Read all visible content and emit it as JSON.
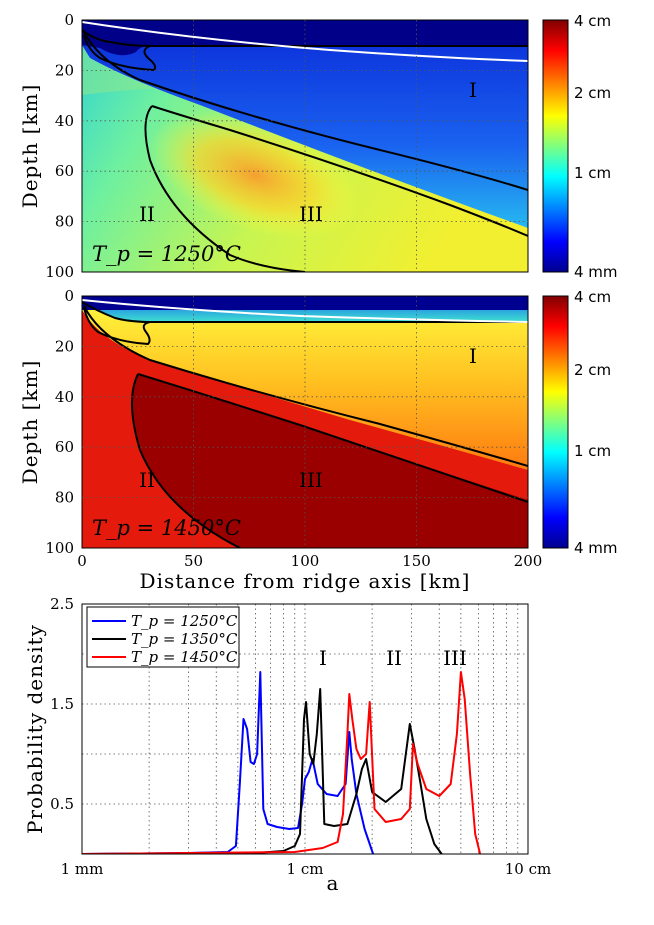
{
  "chart_data": [
    {
      "type": "heatmap",
      "panel": "top",
      "colormap": "jet",
      "annotation": "T_p = 1250°C",
      "ylabel": "Depth [km]",
      "xlim": [
        0,
        200
      ],
      "ylim": [
        100,
        0
      ],
      "x_ticks": [
        "0",
        "50",
        "100",
        "150",
        "200"
      ],
      "y_ticks": [
        "0",
        "20",
        "40",
        "60",
        "80",
        "100"
      ],
      "colorbar_ticks": [
        "4 cm",
        "2 cm",
        "1 cm",
        "4 mm"
      ],
      "region_labels": [
        "I",
        "II",
        "III"
      ]
    },
    {
      "type": "heatmap",
      "panel": "middle",
      "colormap": "jet",
      "annotation": "T_p = 1450°C",
      "xlabel": "Distance from ridge axis [km]",
      "ylabel": "Depth [km]",
      "xlim": [
        0,
        200
      ],
      "ylim": [
        100,
        0
      ],
      "x_ticks": [
        "0",
        "50",
        "100",
        "150",
        "200"
      ],
      "y_ticks": [
        "0",
        "20",
        "40",
        "60",
        "80",
        "100"
      ],
      "colorbar_ticks": [
        "4 cm",
        "2 cm",
        "1 cm",
        "4 mm"
      ],
      "region_labels": [
        "I",
        "II",
        "III"
      ]
    },
    {
      "type": "line",
      "panel": "bottom",
      "xscale": "log",
      "xlabel": "a",
      "ylabel": "Probability density",
      "xlim": [
        0.1,
        10
      ],
      "ylim": [
        0,
        2.5
      ],
      "x_ticks": [
        {
          "value": 0.1,
          "label": "1  mm"
        },
        {
          "value": 1,
          "label": "1  cm"
        },
        {
          "value": 10,
          "label": "10 cm"
        }
      ],
      "y_ticks": [
        {
          "value": 0.5,
          "label": "0.5"
        },
        {
          "value": 1.5,
          "label": "1.5"
        },
        {
          "value": 2.5,
          "label": "2.5"
        }
      ],
      "peak_labels": [
        "I",
        "II",
        "III"
      ],
      "series": [
        {
          "name": "T_p = 1250°C",
          "color": "#0000ff",
          "x": [
            0.1,
            0.3,
            0.45,
            0.49,
            0.51,
            0.53,
            0.55,
            0.57,
            0.59,
            0.61,
            0.63,
            0.65,
            0.68,
            0.75,
            0.85,
            0.93,
            0.97,
            1.0,
            1.04,
            1.08,
            1.14,
            1.25,
            1.4,
            1.52,
            1.58,
            1.62,
            1.7,
            1.85,
            2.02
          ],
          "y": [
            0.0,
            0.01,
            0.02,
            0.08,
            0.7,
            1.35,
            1.25,
            0.92,
            0.9,
            1.0,
            1.82,
            0.45,
            0.3,
            0.27,
            0.25,
            0.26,
            0.5,
            0.75,
            0.82,
            0.95,
            0.7,
            0.6,
            0.58,
            0.7,
            1.22,
            0.95,
            0.6,
            0.25,
            0.0
          ]
        },
        {
          "name": "T_p = 1350°C",
          "color": "#000000",
          "x": [
            0.1,
            0.6,
            0.8,
            0.9,
            0.95,
            0.97,
            0.99,
            1.01,
            1.05,
            1.09,
            1.13,
            1.17,
            1.22,
            1.35,
            1.55,
            1.7,
            1.8,
            1.88,
            2.0,
            2.3,
            2.7,
            2.95,
            3.1,
            3.3,
            3.5,
            3.8,
            4.1
          ],
          "y": [
            0.0,
            0.01,
            0.03,
            0.08,
            0.2,
            0.8,
            1.35,
            1.52,
            1.0,
            0.9,
            1.2,
            1.65,
            0.3,
            0.28,
            0.3,
            0.6,
            0.85,
            0.95,
            0.62,
            0.52,
            0.65,
            1.3,
            1.05,
            0.7,
            0.35,
            0.1,
            0.0
          ]
        },
        {
          "name": "T_p = 1450°C",
          "color": "#ff0000",
          "x": [
            0.1,
            0.9,
            1.2,
            1.4,
            1.48,
            1.55,
            1.58,
            1.63,
            1.7,
            1.78,
            1.88,
            1.95,
            2.05,
            2.3,
            2.7,
            2.95,
            3.05,
            3.2,
            3.5,
            4.0,
            4.5,
            4.8,
            5.0,
            5.2,
            5.5,
            5.8,
            6.1
          ],
          "y": [
            0.0,
            0.02,
            0.06,
            0.12,
            0.4,
            1.2,
            1.6,
            1.35,
            1.05,
            0.95,
            1.0,
            1.52,
            0.45,
            0.32,
            0.35,
            0.45,
            1.1,
            0.9,
            0.65,
            0.58,
            0.7,
            1.2,
            1.82,
            1.55,
            0.8,
            0.2,
            0.0
          ]
        }
      ]
    }
  ]
}
